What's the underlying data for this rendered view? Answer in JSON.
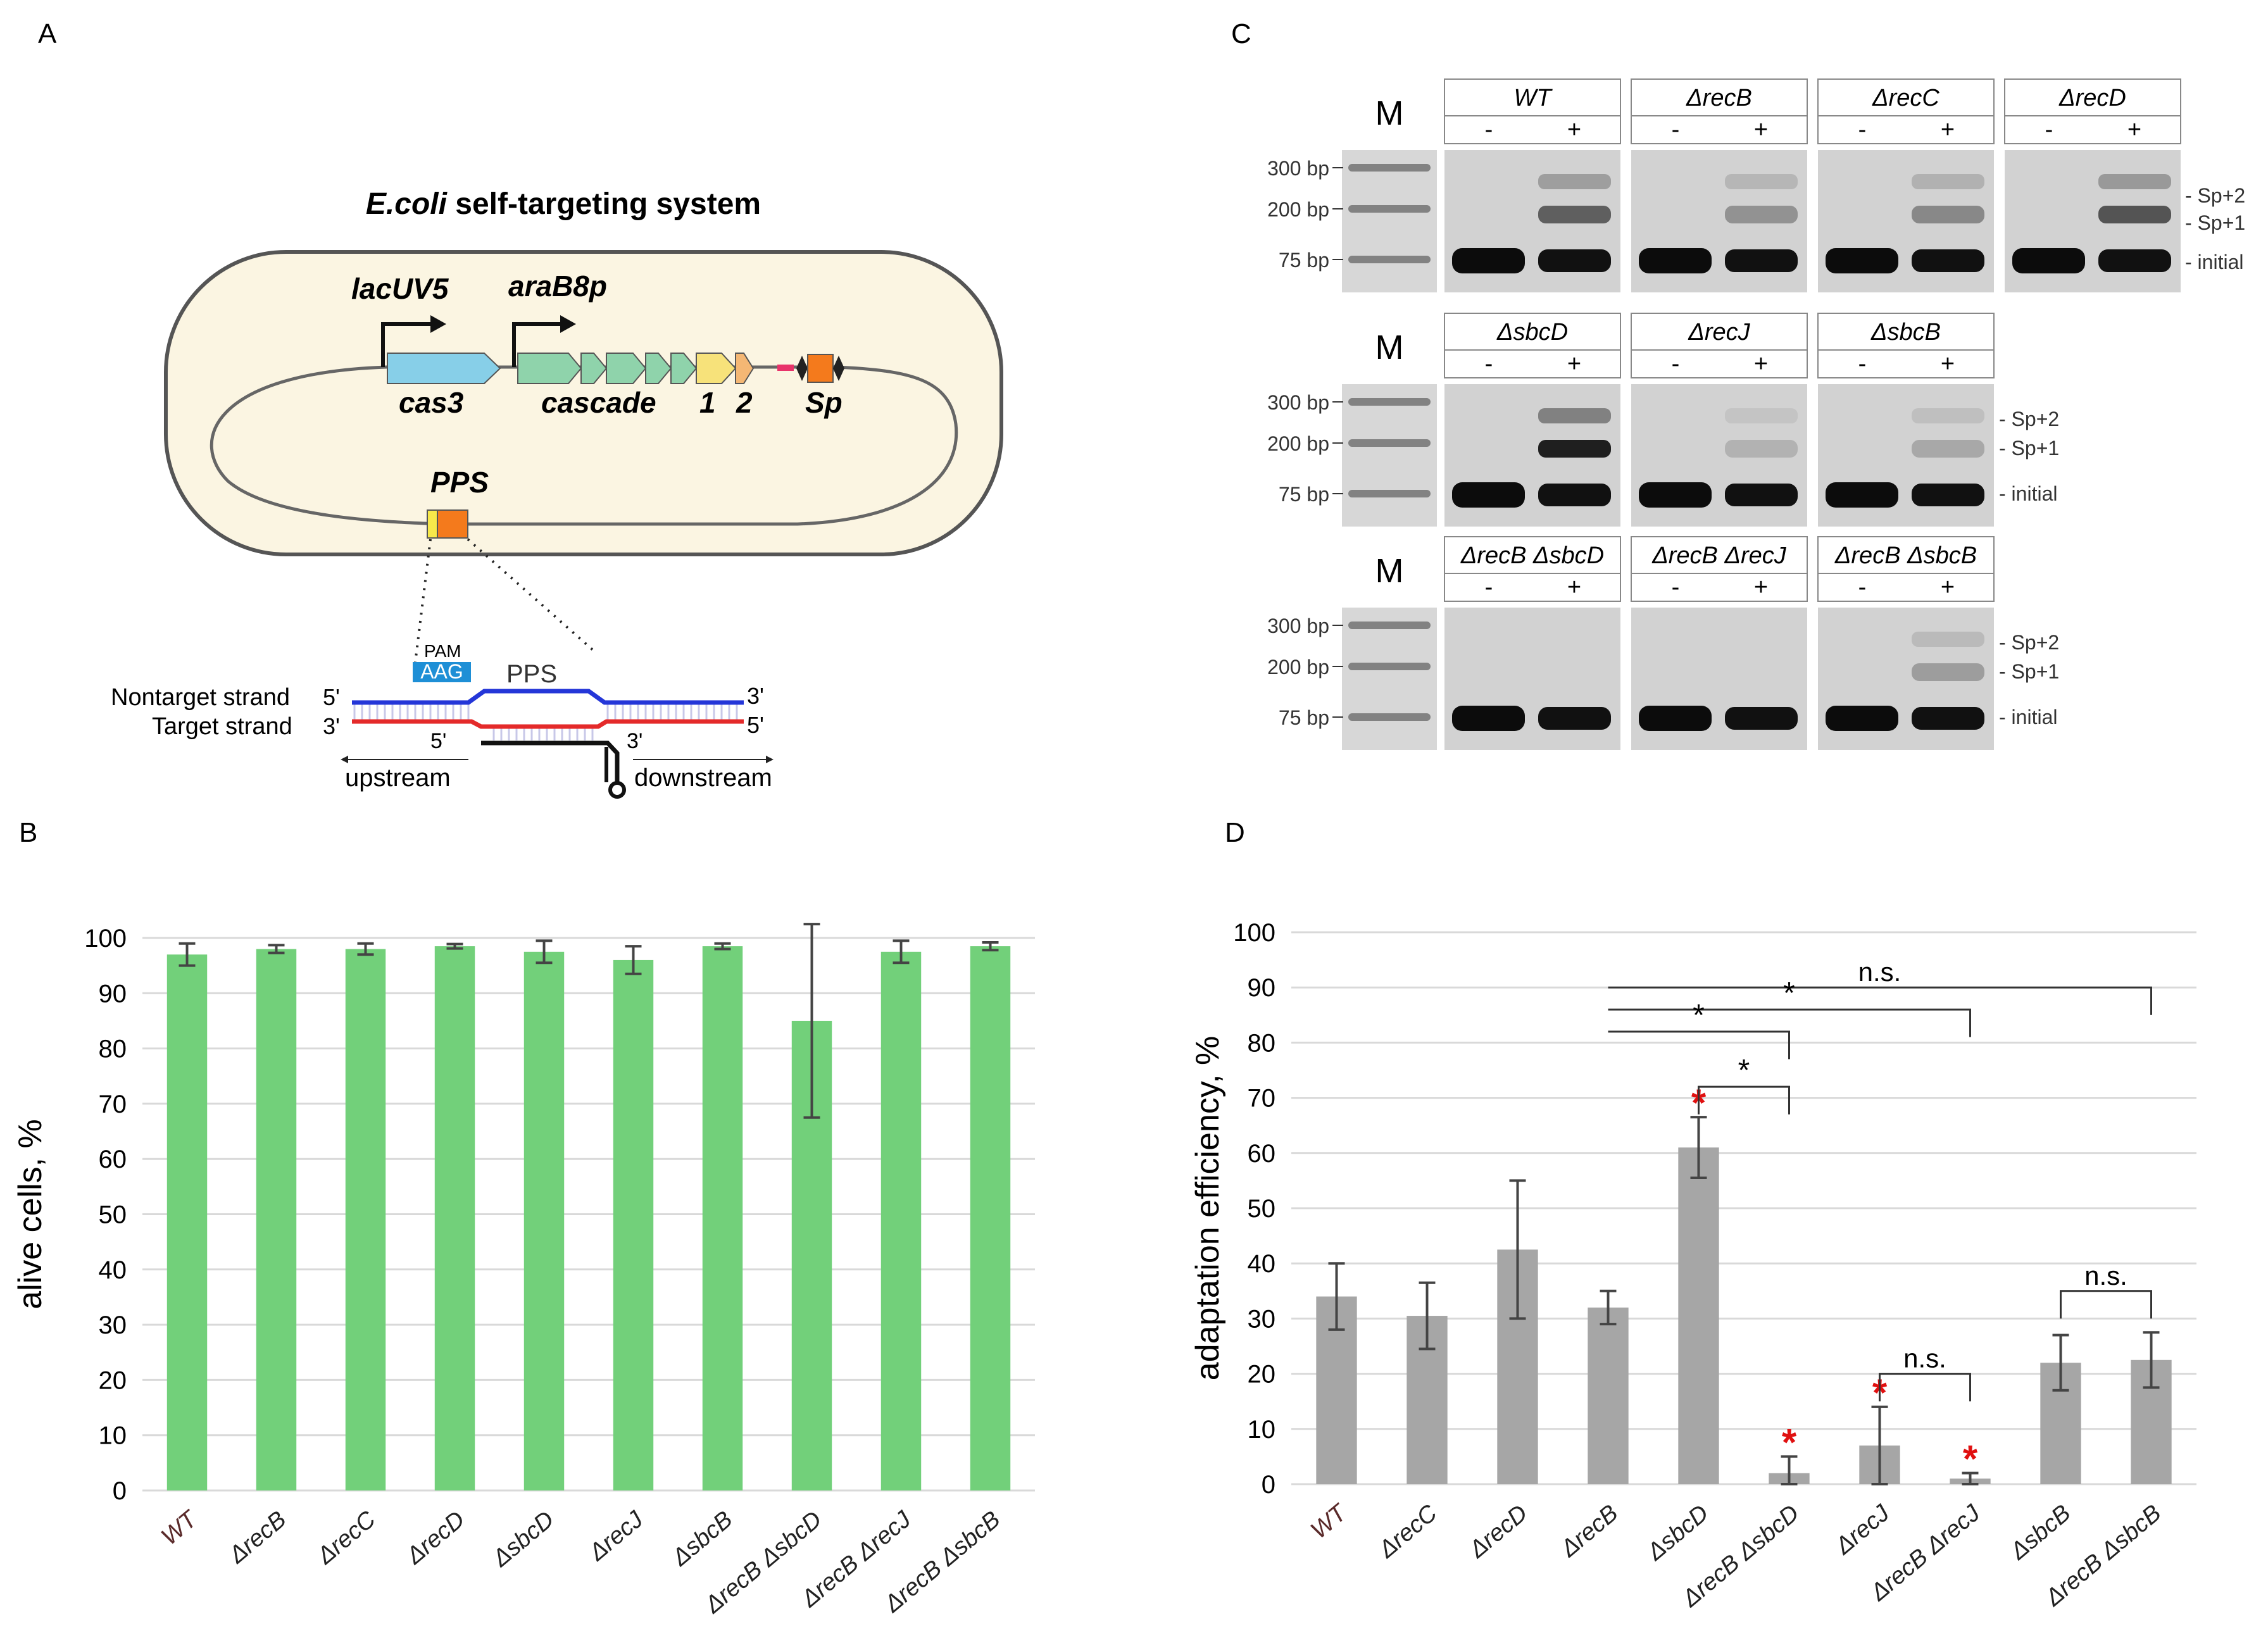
{
  "panels": {
    "a": "A",
    "b": "B",
    "c": "C",
    "d": "D"
  },
  "panel_a": {
    "title_italic": "E.coli",
    "title_rest": " self-targeting system",
    "promoter1": "lacUV5",
    "promoter2": "araB8p",
    "gene_cas3": "cas3",
    "gene_cascade": "cascade",
    "gene_1": "1",
    "gene_2": "2",
    "spacer": "Sp",
    "pps_label": "PPS",
    "pam_label": "PAM",
    "pam_seq": "AAG",
    "pps_region": "PPS",
    "nontarget_strand": "Nontarget strand",
    "target_strand": "Target strand",
    "five_prime": "5'",
    "three_prime": "3'",
    "upstream": "upstream",
    "downstream": "downstream",
    "colors": {
      "cell_fill": "#fbf5e2",
      "cas3": "#87cfe8",
      "cascade": "#8fd3ab",
      "gene1": "#f7e27a",
      "gene2": "#f4b774",
      "spacer": "#f47a1c",
      "nontarget": "#2436d8",
      "target": "#e42a2a",
      "pam_box": "#1e8fd6"
    }
  },
  "panel_c": {
    "marker": "M",
    "bp_labels": [
      "300 bp",
      "200 bp",
      "75 bp"
    ],
    "band_labels": [
      "- Sp+2",
      "- Sp+1",
      "- initial"
    ],
    "minus": "-",
    "plus": "+",
    "rows": [
      {
        "lanes": [
          "WT",
          "ΔrecB",
          "ΔrecC",
          "ΔrecD"
        ],
        "intensity": [
          0.55,
          0.3,
          0.35,
          0.6
        ],
        "side": true
      },
      {
        "lanes": [
          "ΔsbcD",
          "ΔrecJ",
          "ΔsbcB"
        ],
        "intensity": [
          0.85,
          0.15,
          0.2
        ],
        "side": true
      },
      {
        "lanes": [
          "ΔrecB ΔsbcD",
          "ΔrecB ΔrecJ",
          "ΔrecB ΔsbcB"
        ],
        "intensity": [
          0.0,
          0.0,
          0.25
        ],
        "side": true
      }
    ]
  },
  "chart_data": [
    {
      "type": "bar",
      "panel": "B",
      "ylabel": "alive cells, %",
      "ylim": [
        0,
        100
      ],
      "yticks": [
        0,
        10,
        20,
        30,
        40,
        50,
        60,
        70,
        80,
        90,
        100
      ],
      "categories": [
        "WT",
        "ΔrecB",
        "ΔrecC",
        "ΔrecD",
        "ΔsbcD",
        "ΔrecJ",
        "ΔsbcB",
        "ΔrecB ΔsbcD",
        "ΔrecB ΔrecJ",
        "ΔrecB ΔsbcB"
      ],
      "values": [
        97,
        98,
        98,
        98.5,
        97.5,
        96,
        98.5,
        85,
        97.5,
        98.5
      ],
      "errors": [
        2,
        0.7,
        1,
        0.4,
        2,
        2.5,
        0.5,
        17.5,
        2,
        0.7
      ],
      "color": "#72d07a"
    },
    {
      "type": "bar",
      "panel": "D",
      "ylabel": "adaptation efficiency, %",
      "ylim": [
        0,
        100
      ],
      "yticks": [
        0,
        10,
        20,
        30,
        40,
        50,
        60,
        70,
        80,
        90,
        100
      ],
      "categories": [
        "WT",
        "ΔrecC",
        "ΔrecD",
        "ΔrecB",
        "ΔsbcD",
        "ΔrecB ΔsbcD",
        "ΔrecJ",
        "ΔrecB ΔrecJ",
        "ΔsbcB",
        "ΔrecB ΔsbcB"
      ],
      "values": [
        34,
        30.5,
        42.5,
        32,
        61,
        2,
        7,
        1,
        22,
        22.5
      ],
      "errors": [
        6,
        6,
        12.5,
        3,
        5.5,
        3,
        7,
        1,
        5,
        5
      ],
      "color": "#a6a6a6",
      "red_star": [
        false,
        false,
        false,
        false,
        true,
        true,
        true,
        true,
        false,
        false
      ],
      "brackets": [
        {
          "from": 3,
          "to": 9,
          "y": 90,
          "label": "n.s."
        },
        {
          "from": 3,
          "to": 7,
          "y": 86,
          "label": "*"
        },
        {
          "from": 3,
          "to": 5,
          "y": 82,
          "label": "*"
        },
        {
          "from": 4,
          "to": 5,
          "y": 72,
          "label": "*"
        },
        {
          "from": 6,
          "to": 7,
          "y": 20,
          "label": "n.s."
        },
        {
          "from": 8,
          "to": 9,
          "y": 35,
          "label": "n.s."
        }
      ],
      "star_symbol": "*"
    }
  ]
}
